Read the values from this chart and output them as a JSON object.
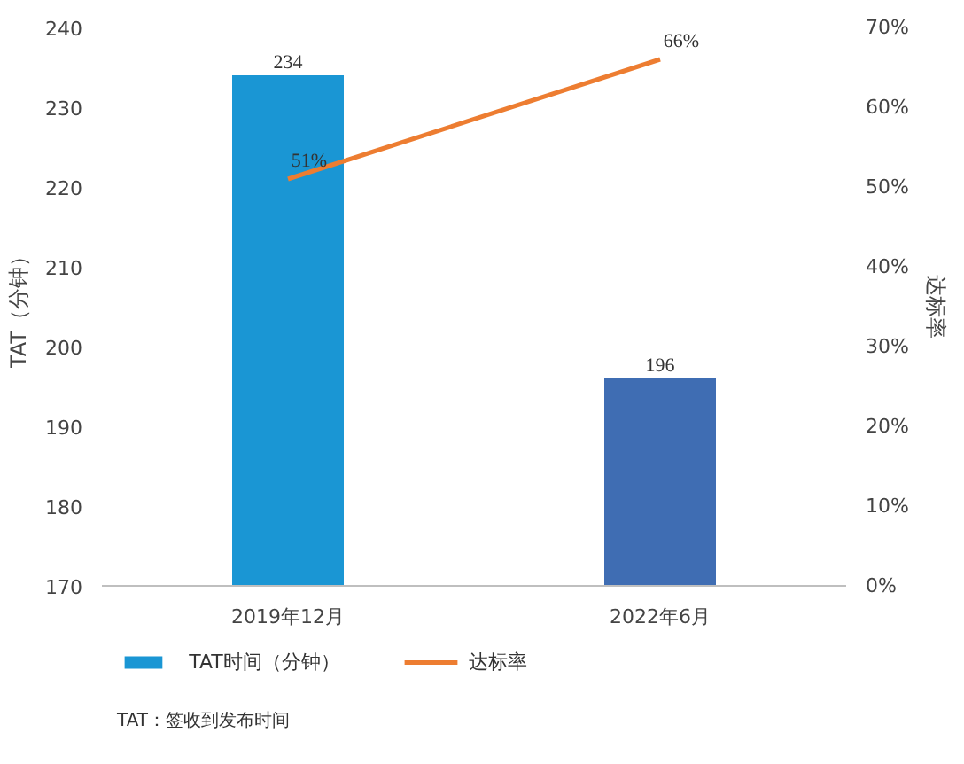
{
  "chart_data": {
    "type": "bar",
    "categories": [
      "2019年12月",
      "2022年6月"
    ],
    "ylabel": "TAT（分钟）",
    "y2label": "达标率",
    "series": [
      {
        "name": "TAT时间（分钟）",
        "colors": [
          "#1a96d4",
          "#3f6db3"
        ],
        "values": [
          234,
          196
        ],
        "data_labels": true
      },
      {
        "name": "达标率",
        "type": "line",
        "axis": "y2",
        "color": "#ed7d31",
        "values": [
          51,
          66
        ],
        "value_labels": [
          "51%",
          "66%"
        ]
      }
    ],
    "ylim": [
      170,
      240
    ],
    "yticks": [
      170,
      180,
      190,
      200,
      210,
      220,
      230,
      240
    ],
    "y2lim": [
      0,
      70
    ],
    "y2ticks": [
      {
        "value": 0,
        "label": "0%"
      },
      {
        "value": 10,
        "label": "10%"
      },
      {
        "value": 20,
        "label": "20%"
      },
      {
        "value": 30,
        "label": "30%"
      },
      {
        "value": 40,
        "label": "40%"
      },
      {
        "value": 50,
        "label": "50%"
      },
      {
        "value": 60,
        "label": "60%"
      },
      {
        "value": 70,
        "label": "70%"
      }
    ],
    "grid": false,
    "legend": "bottom",
    "marker": "none",
    "line_style": "solid",
    "annotations": [
      "TAT：签收到发布时间"
    ]
  }
}
